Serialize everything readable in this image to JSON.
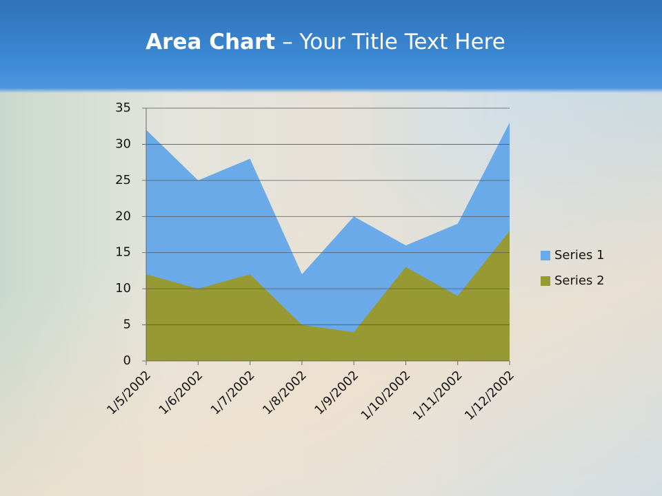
{
  "chart_data": {
    "type": "area",
    "title_parts": [
      "Area Chart",
      "– Your Title Text Here"
    ],
    "categories": [
      "1/5/2002",
      "1/6/2002",
      "1/7/2002",
      "1/8/2002",
      "1/9/2002",
      "1/10/2002",
      "1/11/2002",
      "1/12/2002"
    ],
    "series": [
      {
        "name": "Series 1",
        "color": "#6aaae8",
        "values": [
          32,
          25,
          28,
          12,
          20,
          16,
          19,
          33
        ]
      },
      {
        "name": "Series 2",
        "color": "#979932",
        "values": [
          12,
          10,
          12,
          5,
          4,
          13,
          9,
          18
        ]
      }
    ],
    "ylim": [
      0,
      35
    ],
    "yticks": [
      0,
      5,
      10,
      15,
      20,
      25,
      30,
      35
    ],
    "grid": true,
    "legend": "right"
  }
}
